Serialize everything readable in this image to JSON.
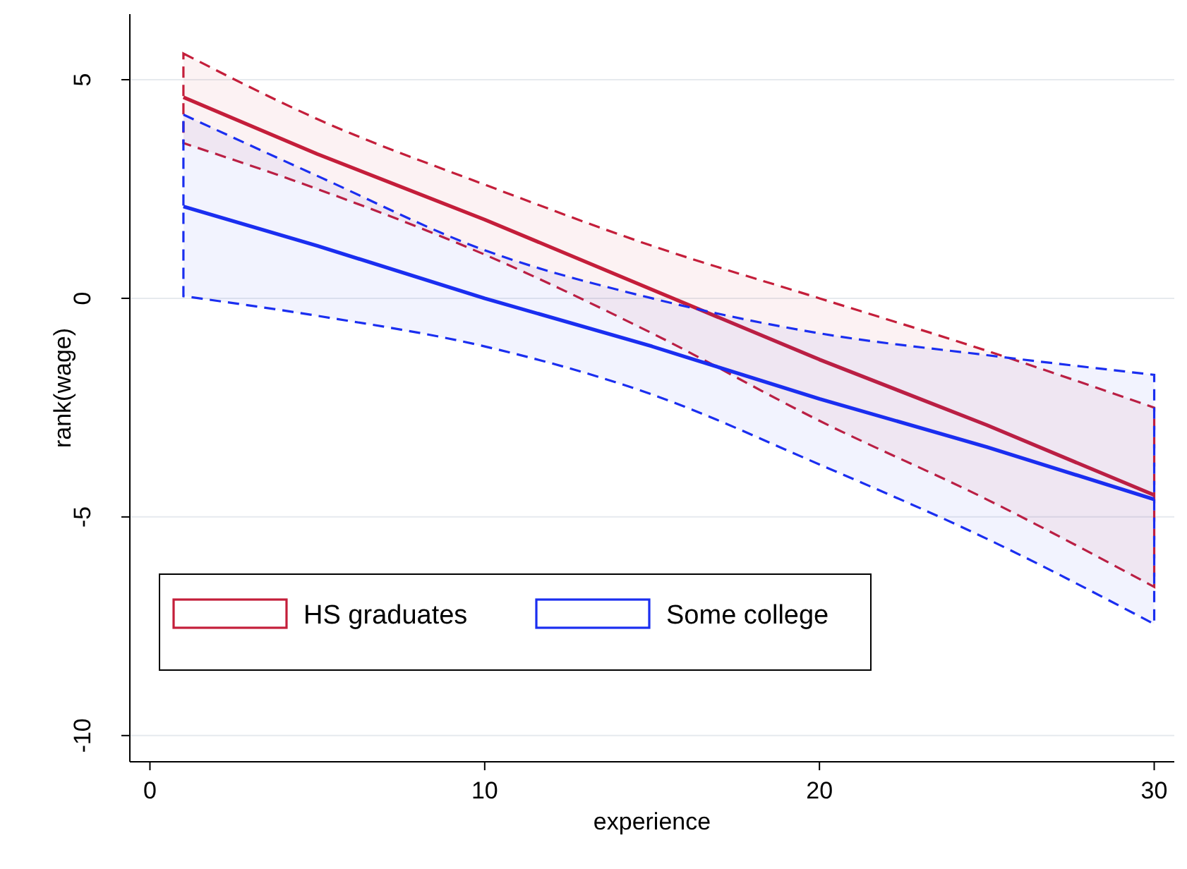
{
  "chart_data": {
    "type": "line",
    "xlabel": "experience",
    "ylabel": "rank(wage)",
    "x": [
      1,
      5,
      10,
      15,
      20,
      25,
      30
    ],
    "series": [
      {
        "name": "HS graduates",
        "color": "#c41e3a",
        "values": [
          4.6,
          3.3,
          1.8,
          0.2,
          -1.4,
          -2.9,
          -4.5
        ],
        "lower": [
          3.55,
          2.5,
          1.0,
          -0.8,
          -2.8,
          -4.6,
          -6.6
        ],
        "upper": [
          5.6,
          4.1,
          2.6,
          1.2,
          0.0,
          -1.2,
          -2.5
        ]
      },
      {
        "name": "Some college",
        "color": "#1a2ef0",
        "values": [
          2.1,
          1.2,
          0.0,
          -1.1,
          -2.3,
          -3.4,
          -4.6
        ],
        "lower": [
          0.05,
          -0.4,
          -1.1,
          -2.2,
          -3.8,
          -5.5,
          -7.45
        ],
        "upper": [
          4.2,
          2.8,
          1.1,
          0.0,
          -0.8,
          -1.3,
          -1.75
        ]
      }
    ],
    "xlim": [
      -0.6,
      30.6
    ],
    "ylim": [
      -10.6,
      6.5
    ],
    "xticks": [
      0,
      10,
      20,
      30
    ],
    "yticks": [
      -10,
      -5,
      0,
      5
    ],
    "grid": "y",
    "legend": "bottom left",
    "line_style": "solid",
    "marker": "none"
  }
}
